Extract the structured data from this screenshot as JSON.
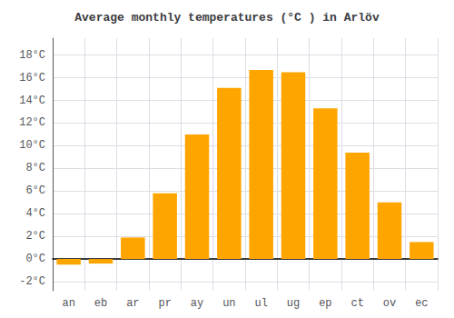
{
  "chart_data": {
    "type": "bar",
    "title": "Average monthly temperatures (°C ) in Arlöv",
    "categories": [
      "an",
      "eb",
      "ar",
      "pr",
      "ay",
      "un",
      "ul",
      "ug",
      "ep",
      "ct",
      "ov",
      "ec"
    ],
    "values": [
      -0.5,
      -0.4,
      1.9,
      5.8,
      11.0,
      15.1,
      16.7,
      16.5,
      13.3,
      9.4,
      5.0,
      1.5
    ],
    "color": "#FFA500",
    "ylim": [
      -2.8,
      19.5
    ],
    "yticks": [
      {
        "value": -2,
        "label": "-2°C"
      },
      {
        "value": 0,
        "label": "0°C"
      },
      {
        "value": 2,
        "label": "2°C"
      },
      {
        "value": 4,
        "label": "4°C"
      },
      {
        "value": 6,
        "label": "6°C"
      },
      {
        "value": 8,
        "label": "8°C"
      },
      {
        "value": 10,
        "label": "10°C"
      },
      {
        "value": 12,
        "label": "12°C"
      },
      {
        "value": 14,
        "label": "14°C"
      },
      {
        "value": 16,
        "label": "16°C"
      },
      {
        "value": 18,
        "label": "18°C"
      }
    ],
    "grid": true
  }
}
